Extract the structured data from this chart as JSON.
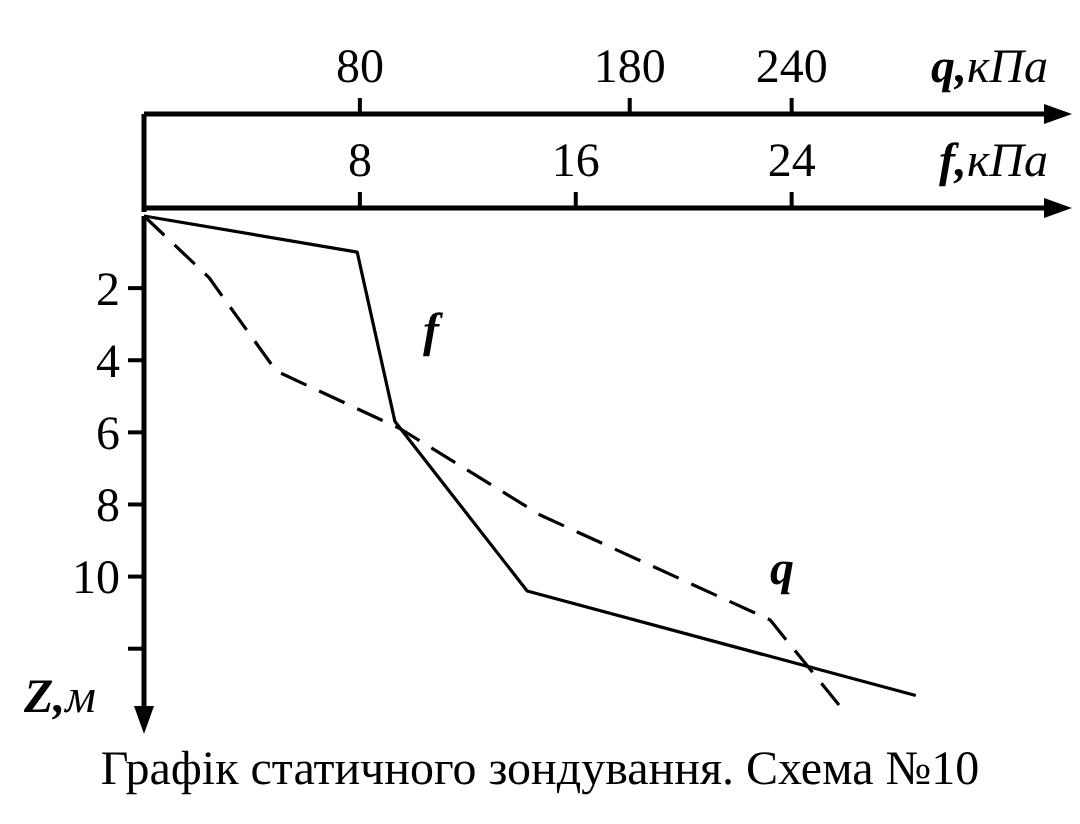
{
  "chart_data": {
    "type": "line",
    "xlabel": "f,кПа",
    "x2label": "q,кПа",
    "ylabel": "Z,м",
    "annotations": [
      "Графік статичного зондування. Схема №10"
    ],
    "xlim": [
      0,
      33.5
    ],
    "xticks": [
      8,
      16,
      24
    ],
    "x2lim": [
      0,
      335
    ],
    "x2ticks": [
      80,
      180,
      240
    ],
    "ylim": [
      13.7,
      0
    ],
    "yticks": [
      2,
      4,
      6,
      8,
      10,
      {
        "value": 12,
        "label": null
      }
    ],
    "grid": false,
    "marker": "none",
    "series": [
      {
        "name": "f",
        "color": "#000000",
        "line_style": "solid",
        "x": [
          0,
          7.9,
          9.3,
          14.2,
          28.6
        ],
        "values": [
          0,
          1.0,
          5.7,
          10.4,
          13.3
        ]
      },
      {
        "name": "q",
        "color": "#000000",
        "line_style": "dashed",
        "axis": "x2",
        "x": [
          0,
          24,
          49,
          95,
          147,
          232,
          258
        ],
        "values": [
          0,
          1.7,
          4.3,
          5.9,
          8.3,
          11.2,
          13.6
        ]
      }
    ]
  }
}
